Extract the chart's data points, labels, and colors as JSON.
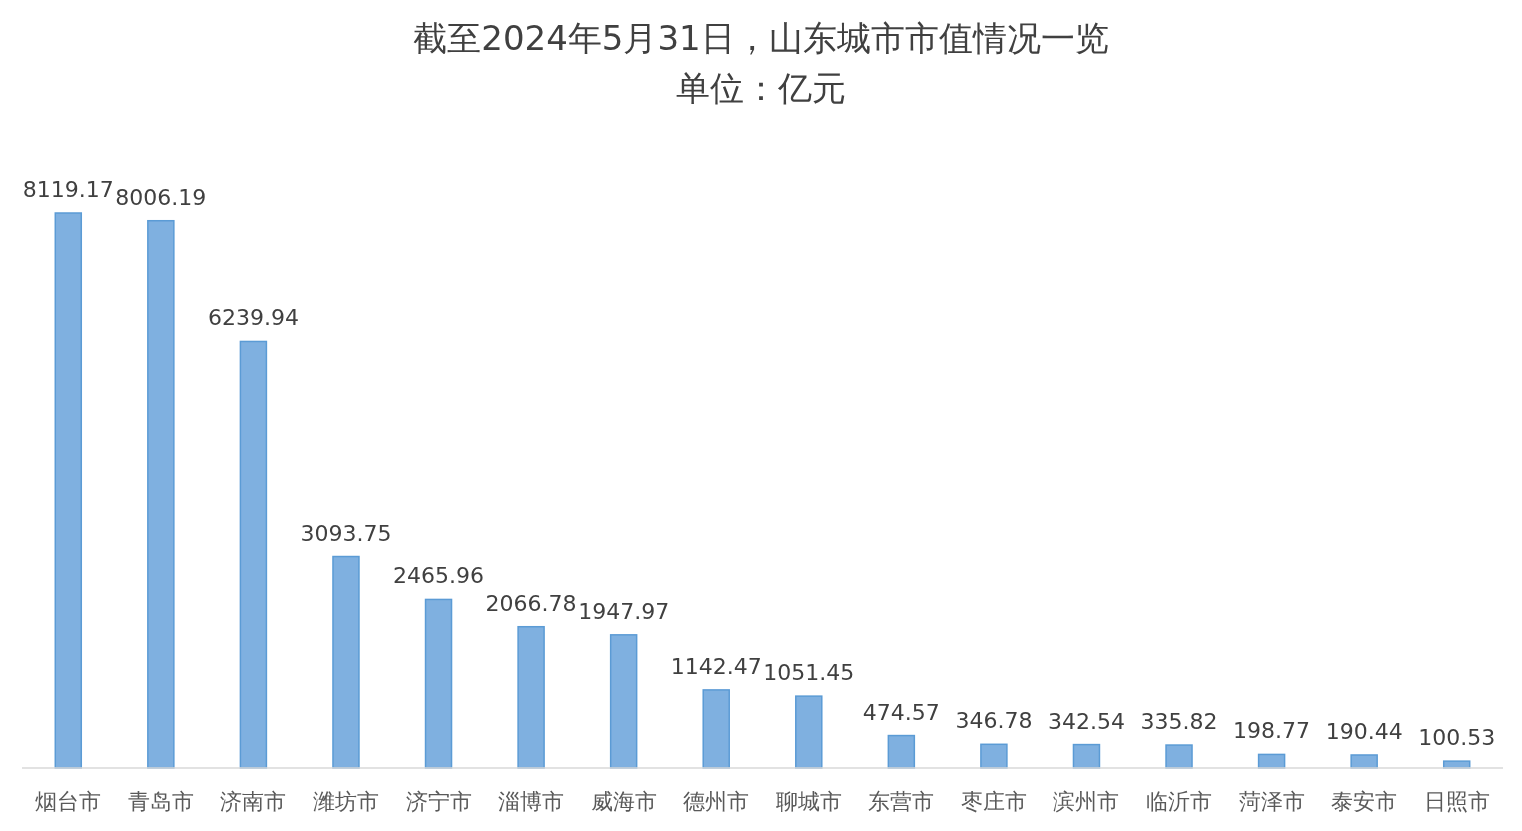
{
  "chart_data": {
    "type": "bar",
    "title": "截至2024年5月31日，山东城市市值情况一览",
    "subtitle": "单位：亿元",
    "categories": [
      "烟台市",
      "青岛市",
      "济南市",
      "潍坊市",
      "济宁市",
      "淄博市",
      "威海市",
      "德州市",
      "聊城市",
      "东营市",
      "枣庄市",
      "滨州市",
      "临沂市",
      "菏泽市",
      "泰安市",
      "日照市"
    ],
    "values": [
      8119.17,
      8006.19,
      6239.94,
      3093.75,
      2465.96,
      2066.78,
      1947.97,
      1142.47,
      1051.45,
      474.57,
      346.78,
      342.54,
      335.82,
      198.77,
      190.44,
      100.53
    ],
    "color": "#7fb0e0",
    "data_labels": true
  }
}
